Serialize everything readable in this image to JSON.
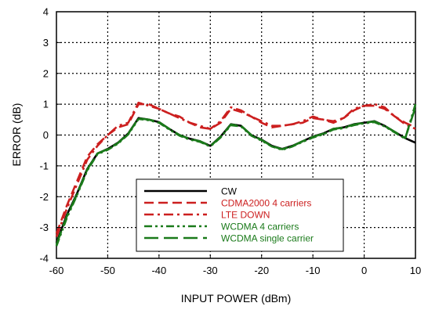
{
  "chart_data": {
    "type": "line",
    "xlabel": "INPUT POWER (dBm)",
    "ylabel": "ERROR (dB)",
    "xlim": [
      -60,
      10
    ],
    "ylim": [
      -4,
      4
    ],
    "xticks": [
      -60,
      -50,
      -40,
      -30,
      -20,
      -10,
      0,
      10
    ],
    "yticks": [
      -4,
      -3,
      -2,
      -1,
      0,
      1,
      2,
      3,
      4
    ],
    "grid": true,
    "legend_position": "bottom-center",
    "series": [
      {
        "name": "CW",
        "color": "#000000",
        "dash": "solid",
        "x": [
          -60,
          -58,
          -56,
          -54,
          -52,
          -50,
          -48,
          -46,
          -44,
          -42,
          -40,
          -38,
          -36,
          -34,
          -32,
          -30,
          -28,
          -26,
          -24,
          -22,
          -20,
          -18,
          -16,
          -14,
          -12,
          -10,
          -8,
          -6,
          -4,
          -2,
          0,
          2,
          4,
          6,
          8,
          10
        ],
        "y": [
          -3.5,
          -2.6,
          -1.9,
          -1.1,
          -0.6,
          -0.45,
          -0.25,
          0.05,
          0.55,
          0.5,
          0.42,
          0.2,
          0.0,
          -0.12,
          -0.2,
          -0.35,
          -0.05,
          0.35,
          0.3,
          0.0,
          -0.15,
          -0.35,
          -0.45,
          -0.35,
          -0.2,
          -0.05,
          0.05,
          0.2,
          0.25,
          0.35,
          0.4,
          0.45,
          0.3,
          0.1,
          -0.1,
          -0.25
        ]
      },
      {
        "name": "CDMA2000 4 carriers",
        "color": "#cc1f1f",
        "dash": "dash",
        "x": [
          -60,
          -58,
          -56,
          -54,
          -52,
          -50,
          -48,
          -46,
          -44,
          -42,
          -40,
          -38,
          -36,
          -34,
          -32,
          -30,
          -28,
          -26,
          -24,
          -22,
          -20,
          -18,
          -16,
          -14,
          -12,
          -10,
          -8,
          -6,
          -4,
          -2,
          0,
          2,
          4,
          6,
          8,
          10
        ],
        "y": [
          -3.2,
          -2.3,
          -1.5,
          -0.7,
          -0.3,
          0.0,
          0.25,
          0.35,
          1.0,
          1.0,
          0.85,
          0.7,
          0.6,
          0.4,
          0.25,
          0.2,
          0.4,
          0.85,
          0.75,
          0.6,
          0.4,
          0.25,
          0.3,
          0.35,
          0.4,
          0.55,
          0.5,
          0.45,
          0.55,
          0.8,
          0.95,
          0.95,
          0.85,
          0.6,
          0.4,
          0.25
        ]
      },
      {
        "name": "LTE DOWN",
        "color": "#cc1f1f",
        "dash": "dashdot",
        "x": [
          -60,
          -58,
          -56,
          -54,
          -52,
          -50,
          -48,
          -46,
          -44,
          -42,
          -40,
          -38,
          -36,
          -34,
          -32,
          -30,
          -28,
          -26,
          -24,
          -22,
          -20,
          -18,
          -16,
          -14,
          -12,
          -10,
          -8,
          -6,
          -4,
          -2,
          0,
          2,
          4,
          6,
          8,
          10
        ],
        "y": [
          -3.3,
          -2.4,
          -1.6,
          -0.8,
          -0.35,
          0.0,
          0.3,
          0.4,
          1.05,
          0.95,
          0.85,
          0.7,
          0.55,
          0.4,
          0.3,
          0.2,
          0.45,
          0.9,
          0.8,
          0.6,
          0.45,
          0.3,
          0.3,
          0.35,
          0.45,
          0.6,
          0.5,
          0.4,
          0.55,
          0.85,
          0.95,
          1.0,
          0.9,
          0.6,
          0.35,
          0.2
        ]
      },
      {
        "name": "WCDMA 4 carriers",
        "color": "#1a7a1a",
        "dash": "dashdotdot",
        "x": [
          -60,
          -58,
          -56,
          -54,
          -52,
          -50,
          -48,
          -46,
          -44,
          -42,
          -40,
          -38,
          -36,
          -34,
          -32,
          -30,
          -28,
          -26,
          -24,
          -22,
          -20,
          -18,
          -16,
          -14,
          -12,
          -10,
          -8,
          -6,
          -4,
          -2,
          0,
          2,
          4,
          6,
          8,
          10
        ],
        "y": [
          -3.6,
          -2.7,
          -1.95,
          -1.15,
          -0.62,
          -0.48,
          -0.28,
          0.02,
          0.52,
          0.48,
          0.4,
          0.18,
          -0.02,
          -0.15,
          -0.22,
          -0.37,
          -0.08,
          0.32,
          0.28,
          -0.02,
          -0.18,
          -0.37,
          -0.48,
          -0.37,
          -0.22,
          -0.08,
          0.02,
          0.18,
          0.22,
          0.32,
          0.38,
          0.42,
          0.28,
          0.08,
          -0.12,
          1.0
        ]
      },
      {
        "name": "WCDMA single carrier",
        "color": "#1a7a1a",
        "dash": "longdash",
        "x": [
          -60,
          -58,
          -56,
          -54,
          -52,
          -50,
          -48,
          -46,
          -44,
          -42,
          -40,
          -38,
          -36,
          -34,
          -32,
          -30,
          -28,
          -26,
          -24,
          -22,
          -20,
          -18,
          -16,
          -14,
          -12,
          -10,
          -8,
          -6,
          -4,
          -2,
          0,
          2,
          4,
          6,
          8,
          10
        ],
        "y": [
          -3.55,
          -2.65,
          -1.92,
          -1.12,
          -0.6,
          -0.46,
          -0.26,
          0.04,
          0.54,
          0.5,
          0.42,
          0.2,
          0.0,
          -0.13,
          -0.2,
          -0.36,
          -0.06,
          0.34,
          0.3,
          0.0,
          -0.16,
          -0.36,
          -0.46,
          -0.36,
          -0.2,
          -0.06,
          0.04,
          0.2,
          0.24,
          0.34,
          0.4,
          0.44,
          0.3,
          0.1,
          -0.1,
          0.9
        ]
      }
    ]
  }
}
